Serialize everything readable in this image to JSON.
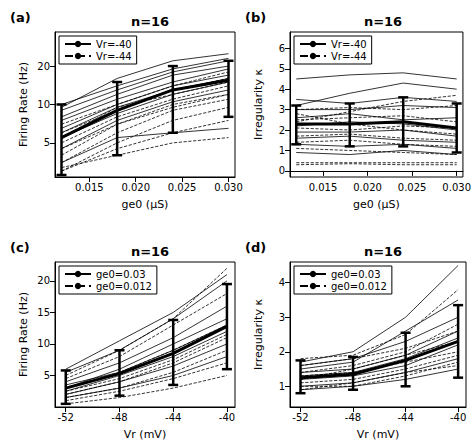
{
  "chart_data": [
    {
      "type": "line",
      "panel": "(a)",
      "title": "n=16",
      "x_label": "ge0 (μS)",
      "y_label": "Firing Rate (Hz)",
      "log": "y",
      "legend": "top-left",
      "x": [
        0.012,
        0.018,
        0.024,
        0.03
      ],
      "xlim": [
        0.0113,
        0.0307
      ],
      "xticks": [
        0.015,
        {
          "value": 0.02,
          "label": "0.020"
        },
        0.025,
        {
          "value": 0.03,
          "label": "0.030"
        }
      ],
      "ylim": [
        2.7,
        37
      ],
      "yticks": [
        5,
        10,
        20
      ],
      "series": [
        {
          "name": "Vr=-40",
          "line_style": "solid",
          "color": "#000000",
          "lines": [
            [
              10,
              14,
              19,
              23
            ],
            [
              9,
              13,
              18,
              22
            ],
            [
              8,
              12,
              17,
              20
            ],
            [
              7.5,
              11,
              15,
              19
            ],
            [
              6.5,
              10,
              14,
              17
            ],
            [
              6,
              9.5,
              13,
              16
            ],
            [
              5.5,
              8.5,
              12,
              15
            ],
            [
              4.5,
              7.5,
              10.5,
              13
            ],
            [
              9.5,
              16,
              22,
              25
            ],
            [
              3.5,
              5.5,
              6,
              6.5
            ]
          ]
        },
        {
          "name": "Vr=-44",
          "line_style": "dashed",
          "color": "#000000",
          "lines": [
            [
              6,
              9,
              13,
              16
            ],
            [
              5,
              8,
              11,
              14
            ],
            [
              4,
              7,
              10,
              12
            ],
            [
              3.5,
              6,
              9,
              11
            ],
            [
              3,
              5,
              7.5,
              9.5
            ],
            [
              7,
              10,
              14,
              18
            ],
            [
              3,
              4.5,
              6,
              7.5
            ],
            [
              4.5,
              7,
              9.5,
              12
            ],
            [
              3.2,
              4,
              5,
              5.5
            ],
            [
              5.5,
              9.5,
              12,
              15
            ]
          ]
        },
        {
          "type": "errorbar",
          "color": "#000000",
          "values": [
            5.5,
            9,
            13,
            15.5
          ],
          "lower": [
            2.8,
            4,
            6,
            8
          ],
          "upper": [
            10,
            15,
            20,
            22
          ]
        }
      ]
    },
    {
      "type": "line",
      "panel": "(b)",
      "title": "n=16",
      "x_label": "ge0 (μS)",
      "y_label": "Irregularity κ",
      "legend": "top-left",
      "x": [
        0.012,
        0.018,
        0.024,
        0.03
      ],
      "xlim": [
        0.0113,
        0.0307
      ],
      "xticks": [
        0.015,
        {
          "value": 0.02,
          "label": "0.020"
        },
        0.025,
        {
          "value": 0.03,
          "label": "0.030"
        }
      ],
      "ylim": [
        -0.3,
        6.8
      ],
      "yticks": [
        0,
        1,
        2,
        3,
        4,
        5,
        6
      ],
      "series": [
        {
          "name": "Vr=-40",
          "line_style": "solid",
          "color": "#000000",
          "lines": [
            [
              4.5,
              4.7,
              4.8,
              4.5
            ],
            [
              3.2,
              3.8,
              4.3,
              4.0
            ],
            [
              3.0,
              3.0,
              3.2,
              3.1
            ],
            [
              2.6,
              2.8,
              2.5,
              2.6
            ],
            [
              2.2,
              2.4,
              2.3,
              2.0
            ],
            [
              1.9,
              1.9,
              2.0,
              1.7
            ],
            [
              1.6,
              1.7,
              1.5,
              1.4
            ],
            [
              1.3,
              1.2,
              1.3,
              1.1
            ],
            [
              0.9,
              0.8,
              1.0,
              0.8
            ],
            [
              3.5,
              3.3,
              3.6,
              3.4
            ]
          ]
        },
        {
          "name": "Vr=-44",
          "line_style": "dashed",
          "color": "#000000",
          "lines": [
            [
              3.0,
              3.1,
              3.0,
              3.2
            ],
            [
              2.5,
              2.6,
              2.7,
              2.4
            ],
            [
              2.1,
              2.0,
              2.2,
              2.1
            ],
            [
              1.7,
              1.8,
              1.6,
              1.5
            ],
            [
              1.4,
              1.5,
              1.3,
              1.2
            ],
            [
              0.4,
              0.4,
              0.4,
              0.4
            ],
            [
              0.3,
              0.35,
              0.3,
              0.3
            ],
            [
              2.8,
              2.3,
              2.0,
              1.8
            ],
            [
              1.1,
              1.0,
              0.9,
              0.8
            ],
            [
              2.4,
              2.9,
              3.4,
              3.7
            ]
          ]
        },
        {
          "type": "errorbar",
          "color": "#000000",
          "values": [
            2.3,
            2.3,
            2.4,
            2.1
          ],
          "lower": [
            1.3,
            1.2,
            1.2,
            0.9
          ],
          "upper": [
            3.2,
            3.3,
            3.6,
            3.3
          ]
        }
      ]
    },
    {
      "type": "line",
      "panel": "(c)",
      "title": "n=16",
      "x_label": "Vr (mV)",
      "y_label": "Firing Rate (Hz)",
      "legend": "top-left",
      "x": [
        -52,
        -48,
        -44,
        -40
      ],
      "xlim": [
        -52.8,
        -39.4
      ],
      "xticks": [
        -52,
        -48,
        -44,
        -40
      ],
      "ylim": [
        0,
        23
      ],
      "yticks": [
        5,
        10,
        15,
        20
      ],
      "series": [
        {
          "name": "ge0=0.03",
          "line_style": "solid",
          "color": "#000000",
          "lines": [
            [
              5.5,
              9,
              14,
              20
            ],
            [
              4,
              7,
              11,
              16
            ],
            [
              3,
              6,
              10,
              14
            ],
            [
              2.5,
              5,
              8,
              12
            ],
            [
              2,
              4,
              6.5,
              10
            ],
            [
              1.5,
              3,
              5,
              8
            ],
            [
              6,
              10.5,
              15,
              21
            ],
            [
              3.5,
              5.5,
              9,
              13
            ]
          ]
        },
        {
          "name": "ge0=0.012",
          "line_style": "dashed",
          "color": "#000000",
          "lines": [
            [
              4.5,
              8,
              13,
              18
            ],
            [
              3,
              5.5,
              9,
              13
            ],
            [
              2,
              4,
              7,
              11
            ],
            [
              1,
              2.5,
              4.5,
              7
            ],
            [
              0.5,
              1.5,
              3,
              5
            ],
            [
              5,
              9,
              14,
              22
            ],
            [
              2.5,
              4.5,
              7.5,
              11.5
            ],
            [
              1.5,
              3,
              5.5,
              9
            ]
          ]
        },
        {
          "type": "errorbar",
          "color": "#000000",
          "values": [
            3,
            5.3,
            8.5,
            12.8
          ],
          "lower": [
            0.5,
            1.8,
            3.5,
            6
          ],
          "upper": [
            5.8,
            9,
            13.8,
            19.5
          ]
        }
      ]
    },
    {
      "type": "line",
      "panel": "(d)",
      "title": "n=16",
      "x_label": "Vr (mV)",
      "y_label": "Irregularity κ",
      "legend": "top-left",
      "x": [
        -52,
        -48,
        -44,
        -40
      ],
      "xlim": [
        -52.8,
        -39.4
      ],
      "xticks": [
        -52,
        -48,
        -44,
        -40
      ],
      "ylim": [
        0.4,
        4.6
      ],
      "yticks": [
        1,
        2,
        3,
        4
      ],
      "series": [
        {
          "name": "ge0=0.03",
          "line_style": "solid",
          "color": "#000000",
          "lines": [
            [
              1.6,
              1.8,
              2.3,
              3.0
            ],
            [
              1.4,
              1.5,
              1.9,
              2.6
            ],
            [
              1.2,
              1.3,
              1.6,
              2.2
            ],
            [
              1.0,
              1.1,
              1.4,
              1.8
            ],
            [
              1.7,
              2.0,
              3.0,
              4.5
            ],
            [
              1.3,
              1.4,
              1.8,
              2.4
            ],
            [
              0.9,
              1.0,
              1.2,
              1.5
            ],
            [
              1.5,
              1.7,
              2.6,
              3.5
            ]
          ]
        },
        {
          "name": "ge0=0.012",
          "line_style": "dashed",
          "color": "#000000",
          "lines": [
            [
              1.3,
              1.4,
              1.7,
              2.0
            ],
            [
              1.1,
              1.2,
              1.5,
              1.9
            ],
            [
              1.6,
              1.8,
              2.1,
              2.6
            ],
            [
              1.0,
              1.0,
              1.3,
              1.7
            ],
            [
              1.8,
              1.9,
              2.5,
              3.8
            ],
            [
              0.9,
              1.1,
              1.4,
              1.6
            ],
            [
              1.2,
              1.5,
              1.9,
              2.3
            ],
            [
              1.4,
              1.6,
              2.0,
              2.8
            ]
          ]
        },
        {
          "type": "errorbar",
          "color": "#000000",
          "values": [
            1.25,
            1.35,
            1.75,
            2.3
          ],
          "lower": [
            0.8,
            0.9,
            1.0,
            1.25
          ],
          "upper": [
            1.75,
            1.85,
            2.55,
            3.35
          ]
        }
      ]
    }
  ]
}
